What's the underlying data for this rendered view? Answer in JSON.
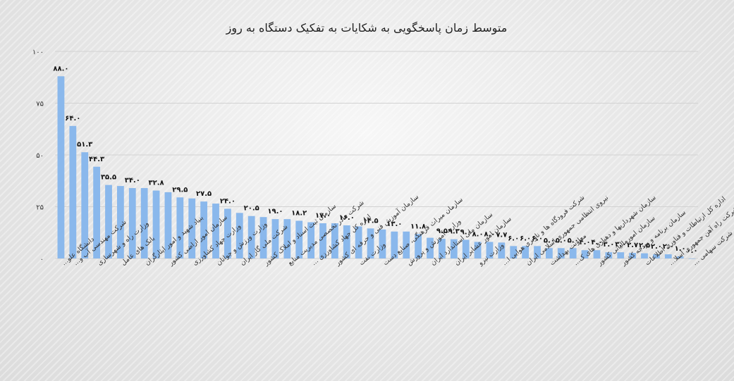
{
  "chart_data": {
    "type": "bar",
    "title": "متوسط زمان پاسخگویی به شکایات به تفکیک دستگاه به روز",
    "ylim": [
      0,
      100
    ],
    "yticks": [
      "۰",
      "۲۵",
      "۵۰",
      "۷۵",
      "۱۰۰"
    ],
    "ytick_values": [
      0,
      25,
      50,
      75,
      100
    ],
    "grid": true,
    "bar_color": "#8ab8ec",
    "values": [
      88,
      64,
      51.3,
      44.3,
      35.5,
      35,
      34,
      34,
      32.8,
      32,
      29.5,
      29,
      27.5,
      26.5,
      24,
      22,
      20.5,
      20,
      19,
      19,
      18.2,
      17.5,
      17,
      17,
      16,
      15.5,
      14.5,
      14,
      13,
      13,
      11.8,
      10,
      9.5,
      9.3,
      9,
      8,
      8,
      7.7,
      6,
      6,
      6,
      5,
      5,
      5,
      4,
      4,
      3,
      3,
      2.7,
      2.5,
      2,
      2,
      1,
      0
    ],
    "value_labels": [
      "۸۸.۰",
      "۶۴.۰",
      "۵۱.۳",
      "۴۴.۳",
      "۳۵.۵",
      "",
      "۳۴.۰",
      "",
      "۳۲.۸",
      "",
      "۲۹.۵",
      "",
      "۲۷.۵",
      "",
      "۲۴.۰",
      "",
      "۲۰.۵",
      "",
      "۱۹.۰",
      "",
      "۱۸.۲",
      "",
      "۱۷.۰",
      "",
      "۱۶.۰",
      "",
      "۱۴.۵",
      "",
      "۱۳.۰",
      "",
      "۱۱.۸",
      "",
      "۹.۵",
      "۹.۳",
      "۹.۰",
      "۸.۰",
      "۸.۰",
      "۷.۷",
      "۶.۰",
      "۶.۰",
      "۶.۰",
      "۵.۰",
      "۵.۰",
      "۵.۰",
      "۴.۰",
      "۴.۰",
      "۳.۰",
      "۳.۰",
      "۲.۷",
      "۲.۵",
      "۲.۰",
      "۲.۰",
      "۱.۰",
      "۰.۰"
    ],
    "category_labels": [
      "دانشگاه علو...",
      "شرکت مهندسی آب و...",
      "",
      "وزارت راه و شهرسازی",
      "",
      "بانک های عامل",
      "",
      "بنیاد شهید و امور ایثارگران",
      "",
      "سازمان امور اراضی کشور",
      "",
      "وزارت جهاد کشاورزی",
      "",
      "وزارت ورزش و جوانان",
      "",
      "شرکت ملی گاز ایران",
      "",
      "سازمان ثبت اسناد و املاک کشور",
      "",
      "شرکت مادر تخصصی مدیریت منابع",
      "",
      "اداره کل جهاد کشاورزی ...",
      "",
      "سازمان آموزش فنی و حرفه ای کشور",
      "",
      "وزارت نفت",
      "",
      "سازمان میراث فرهنگی، صنایع دست",
      "",
      "وزارت آموزش و پرورش",
      "",
      "سازمان ملی استاندارد ایران",
      "",
      "سازمان امور عشایر ایران",
      "",
      "وزارت نیرو",
      "",
      "شرکت فرودگاه ها و ناوبری هوایی ا...",
      "",
      "نیروی انتظامی جمهوری اسلامی ایران",
      "",
      "معاونت بهداشت",
      "",
      "سازمان شهرداریها و دهیاری های ک...",
      "",
      "سازمان امورمالیاتی کشور",
      "",
      "سازمان برنامه و بودجه کشور",
      "",
      "اداره کل ارتباطات و فناوری اطلاعات",
      "",
      "شرکت راه آهن جمهوری اسلا...",
      "",
      "شرکت سهامی ..."
    ]
  }
}
